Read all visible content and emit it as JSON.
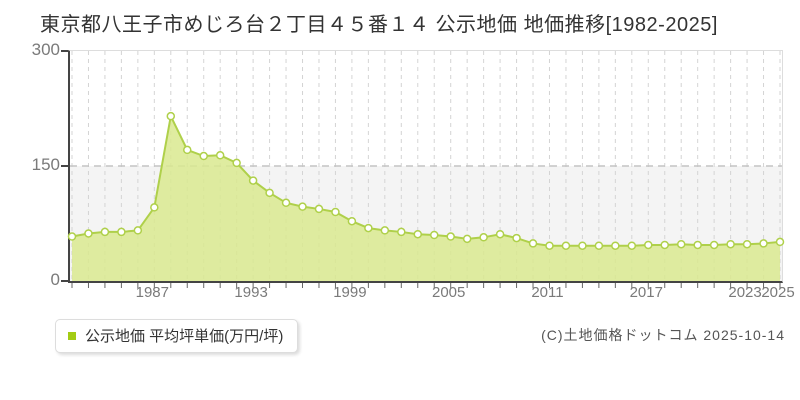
{
  "title": "東京都八王子市めじろ台２丁目４５番１４ 公示地価 地価推移[1982-2025]",
  "legend": {
    "label": "公示地価 平均坪単価(万円/坪)",
    "marker_color": "#a3cc14"
  },
  "footer": {
    "copyright": "(C)土地価格ドットコム 2025-10-14"
  },
  "chart_data": {
    "type": "area",
    "title": "東京都八王子市めじろ台２丁目４５番１４ 公示地価 地価推移[1982-2025]",
    "series_name": "公示地価 平均坪単価(万円/坪)",
    "xlabel": "",
    "ylabel": "平均坪単価(万円/坪)",
    "ylim": [
      0,
      300
    ],
    "yticks": [
      0,
      150,
      300
    ],
    "xticks_labeled": [
      1987,
      1993,
      1999,
      2005,
      2011,
      2017,
      2023,
      2025
    ],
    "grid": "vertical dashed per year; horizontal dashed at 150; lower band shaded",
    "legend_position": "bottom-left",
    "years": [
      1982,
      1983,
      1984,
      1985,
      1986,
      1987,
      1988,
      1989,
      1990,
      1991,
      1992,
      1993,
      1994,
      1995,
      1996,
      1997,
      1998,
      1999,
      2000,
      2001,
      2002,
      2003,
      2004,
      2005,
      2006,
      2007,
      2008,
      2009,
      2010,
      2011,
      2012,
      2013,
      2014,
      2015,
      2016,
      2017,
      2018,
      2019,
      2020,
      2021,
      2022,
      2023,
      2024,
      2025
    ],
    "values": [
      58,
      62,
      64,
      64,
      66,
      96,
      215,
      171,
      163,
      164,
      154,
      131,
      115,
      102,
      97,
      94,
      90,
      78,
      69,
      66,
      64,
      61,
      60,
      58,
      55,
      57,
      61,
      56,
      49,
      46,
      46,
      46,
      46,
      46,
      46,
      47,
      47,
      48,
      47,
      47,
      48,
      48,
      49,
      51
    ],
    "colors": {
      "line": "#afd04a",
      "fill": "#d9e98f",
      "marker_fill": "#ffffff",
      "grid": "#d4d4d4",
      "hgrid": "#c3c3c3",
      "band": "#f4f4f4",
      "axis": "#444444",
      "tick": "#666666"
    }
  }
}
